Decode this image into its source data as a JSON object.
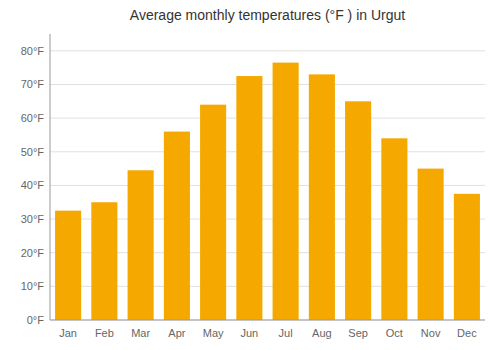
{
  "chart_data": {
    "type": "bar",
    "title": "Average monthly temperatures (°F ) in Urgut",
    "categories": [
      "Jan",
      "Feb",
      "Mar",
      "Apr",
      "May",
      "Jun",
      "Jul",
      "Aug",
      "Sep",
      "Oct",
      "Nov",
      "Dec"
    ],
    "values": [
      32.5,
      35.0,
      44.5,
      56.0,
      64.0,
      72.5,
      76.5,
      73.0,
      65.0,
      54.0,
      45.0,
      37.5
    ],
    "color": "#F5A800",
    "ylim": [
      0,
      85
    ],
    "yticks": [
      {
        "value": 0,
        "label": "0°F"
      },
      {
        "value": 10,
        "label": "10°F"
      },
      {
        "value": 20,
        "label": "20°F"
      },
      {
        "value": 30,
        "label": "30°F"
      },
      {
        "value": 40,
        "label": "40°F"
      },
      {
        "value": 50,
        "label": "50°F"
      },
      {
        "value": 60,
        "label": "60°F"
      },
      {
        "value": 70,
        "label": "70°F"
      },
      {
        "value": 80,
        "label": "80°F"
      }
    ],
    "grid": true
  }
}
